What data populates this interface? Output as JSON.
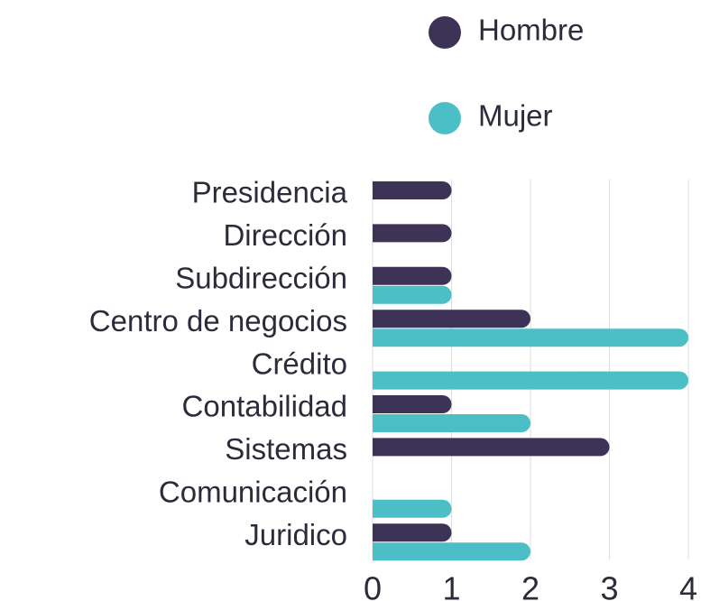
{
  "chart_data": {
    "type": "bar",
    "orientation": "horizontal",
    "categories": [
      "Presidencia",
      "Dirección",
      "Subdirección",
      "Centro de negocios",
      "Crédito",
      "Contabilidad",
      "Sistemas",
      "Comunicación",
      "Juridico"
    ],
    "series": [
      {
        "name": "Hombre",
        "color": "#3d3357",
        "values": [
          1,
          1,
          1,
          2,
          0,
          1,
          3,
          0,
          1
        ]
      },
      {
        "name": "Mujer",
        "color": "#4bbfc5",
        "values": [
          0,
          0,
          1,
          4,
          4,
          2,
          0,
          1,
          2
        ]
      }
    ],
    "xlim": [
      0,
      4
    ],
    "xticks": [
      0,
      1,
      2,
      3,
      4
    ],
    "grid": true,
    "legend": "top"
  }
}
